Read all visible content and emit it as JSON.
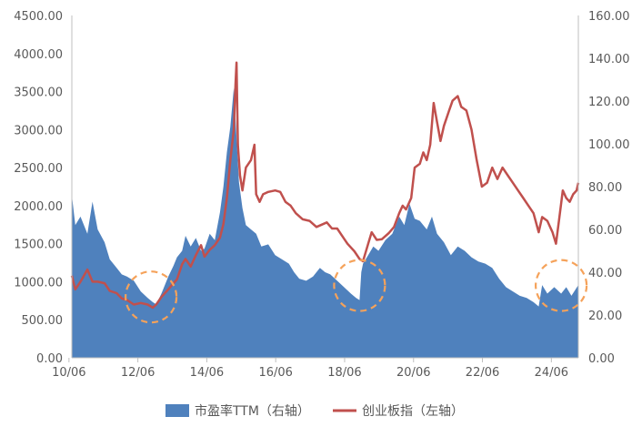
{
  "chart_data": {
    "type": "area+line",
    "title": "",
    "x_ticks": [
      "10/06",
      "12/06",
      "14/06",
      "16/06",
      "18/06",
      "20/06",
      "22/06",
      "24/06"
    ],
    "x_range": [
      2010.5,
      2025.2
    ],
    "left_axis": {
      "ticks": [
        "0.00",
        "500.00",
        "1000.00",
        "1500.00",
        "2000.00",
        "2500.00",
        "3000.00",
        "3500.00",
        "4000.00",
        "4500.00"
      ],
      "ylim": [
        0,
        4500
      ]
    },
    "right_axis": {
      "ticks": [
        "0.00",
        "20.00",
        "40.00",
        "60.00",
        "80.00",
        "100.00",
        "120.00",
        "140.00",
        "160.00"
      ],
      "ylim": [
        0,
        160
      ]
    },
    "grid": false,
    "legend_position": "bottom",
    "series": [
      {
        "name": "市盈率TTM（右轴）",
        "kind": "area",
        "axis": "right",
        "color": "#4f81bd",
        "points": [
          [
            2010.5,
            76
          ],
          [
            2010.6,
            62
          ],
          [
            2010.75,
            66
          ],
          [
            2010.95,
            58
          ],
          [
            2011.1,
            73
          ],
          [
            2011.25,
            60
          ],
          [
            2011.45,
            54
          ],
          [
            2011.6,
            46
          ],
          [
            2011.8,
            42
          ],
          [
            2011.95,
            39
          ],
          [
            2012.1,
            38
          ],
          [
            2012.3,
            36
          ],
          [
            2012.5,
            31
          ],
          [
            2012.7,
            28
          ],
          [
            2012.85,
            26
          ],
          [
            2012.95,
            25
          ],
          [
            2013.1,
            30
          ],
          [
            2013.3,
            38
          ],
          [
            2013.45,
            43
          ],
          [
            2013.55,
            47
          ],
          [
            2013.7,
            50
          ],
          [
            2013.8,
            57
          ],
          [
            2013.95,
            52
          ],
          [
            2014.1,
            56
          ],
          [
            2014.25,
            50
          ],
          [
            2014.35,
            51
          ],
          [
            2014.5,
            58
          ],
          [
            2014.65,
            55
          ],
          [
            2014.8,
            68
          ],
          [
            2014.9,
            80
          ],
          [
            2015.0,
            96
          ],
          [
            2015.1,
            108
          ],
          [
            2015.2,
            126
          ],
          [
            2015.28,
            103
          ],
          [
            2015.35,
            82
          ],
          [
            2015.45,
            70
          ],
          [
            2015.55,
            62
          ],
          [
            2015.7,
            60
          ],
          [
            2015.85,
            58
          ],
          [
            2016.0,
            52
          ],
          [
            2016.2,
            53
          ],
          [
            2016.4,
            48
          ],
          [
            2016.6,
            46
          ],
          [
            2016.8,
            44
          ],
          [
            2016.95,
            40
          ],
          [
            2017.1,
            37
          ],
          [
            2017.3,
            36
          ],
          [
            2017.5,
            38
          ],
          [
            2017.7,
            42
          ],
          [
            2017.85,
            40
          ],
          [
            2018.0,
            39
          ],
          [
            2018.2,
            36
          ],
          [
            2018.4,
            33
          ],
          [
            2018.6,
            30
          ],
          [
            2018.75,
            28
          ],
          [
            2018.85,
            27
          ],
          [
            2018.9,
            40
          ],
          [
            2018.95,
            44
          ],
          [
            2019.1,
            48
          ],
          [
            2019.25,
            52
          ],
          [
            2019.4,
            50
          ],
          [
            2019.6,
            55
          ],
          [
            2019.8,
            58
          ],
          [
            2020.0,
            66
          ],
          [
            2020.15,
            62
          ],
          [
            2020.3,
            72
          ],
          [
            2020.45,
            65
          ],
          [
            2020.6,
            64
          ],
          [
            2020.8,
            60
          ],
          [
            2020.95,
            66
          ],
          [
            2021.1,
            58
          ],
          [
            2021.3,
            54
          ],
          [
            2021.5,
            48
          ],
          [
            2021.7,
            52
          ],
          [
            2021.9,
            50
          ],
          [
            2022.1,
            47
          ],
          [
            2022.3,
            45
          ],
          [
            2022.5,
            44
          ],
          [
            2022.7,
            42
          ],
          [
            2022.9,
            37
          ],
          [
            2023.1,
            33
          ],
          [
            2023.3,
            31
          ],
          [
            2023.5,
            29
          ],
          [
            2023.7,
            28
          ],
          [
            2023.9,
            26
          ],
          [
            2024.05,
            24
          ],
          [
            2024.15,
            34
          ],
          [
            2024.3,
            30
          ],
          [
            2024.5,
            33
          ],
          [
            2024.7,
            30
          ],
          [
            2024.85,
            33
          ],
          [
            2025.0,
            29
          ],
          [
            2025.2,
            34
          ]
        ]
      },
      {
        "name": "创业板指（左轴）",
        "kind": "line",
        "axis": "left",
        "color": "#c0504d",
        "points": [
          [
            2010.5,
            1080
          ],
          [
            2010.6,
            900
          ],
          [
            2010.75,
            1000
          ],
          [
            2010.95,
            1160
          ],
          [
            2011.1,
            1000
          ],
          [
            2011.25,
            1000
          ],
          [
            2011.45,
            980
          ],
          [
            2011.6,
            880
          ],
          [
            2011.8,
            850
          ],
          [
            2011.95,
            780
          ],
          [
            2012.1,
            760
          ],
          [
            2012.3,
            700
          ],
          [
            2012.5,
            720
          ],
          [
            2012.7,
            700
          ],
          [
            2012.85,
            660
          ],
          [
            2012.95,
            700
          ],
          [
            2013.1,
            800
          ],
          [
            2013.3,
            900
          ],
          [
            2013.45,
            980
          ],
          [
            2013.55,
            1030
          ],
          [
            2013.7,
            1230
          ],
          [
            2013.8,
            1300
          ],
          [
            2013.95,
            1200
          ],
          [
            2014.1,
            1350
          ],
          [
            2014.25,
            1480
          ],
          [
            2014.35,
            1330
          ],
          [
            2014.5,
            1420
          ],
          [
            2014.65,
            1480
          ],
          [
            2014.8,
            1580
          ],
          [
            2014.9,
            1760
          ],
          [
            2015.0,
            2100
          ],
          [
            2015.1,
            2600
          ],
          [
            2015.2,
            3000
          ],
          [
            2015.25,
            3600
          ],
          [
            2015.28,
            3880
          ],
          [
            2015.32,
            2800
          ],
          [
            2015.38,
            2400
          ],
          [
            2015.45,
            2200
          ],
          [
            2015.55,
            2500
          ],
          [
            2015.7,
            2600
          ],
          [
            2015.8,
            2800
          ],
          [
            2015.85,
            2150
          ],
          [
            2015.95,
            2050
          ],
          [
            2016.05,
            2150
          ],
          [
            2016.2,
            2180
          ],
          [
            2016.4,
            2200
          ],
          [
            2016.55,
            2180
          ],
          [
            2016.7,
            2050
          ],
          [
            2016.85,
            2000
          ],
          [
            2017.0,
            1900
          ],
          [
            2017.2,
            1820
          ],
          [
            2017.4,
            1800
          ],
          [
            2017.6,
            1720
          ],
          [
            2017.75,
            1750
          ],
          [
            2017.9,
            1780
          ],
          [
            2018.05,
            1700
          ],
          [
            2018.2,
            1700
          ],
          [
            2018.35,
            1600
          ],
          [
            2018.5,
            1500
          ],
          [
            2018.7,
            1400
          ],
          [
            2018.85,
            1300
          ],
          [
            2018.95,
            1270
          ],
          [
            2019.1,
            1500
          ],
          [
            2019.2,
            1650
          ],
          [
            2019.35,
            1550
          ],
          [
            2019.5,
            1560
          ],
          [
            2019.7,
            1640
          ],
          [
            2019.85,
            1720
          ],
          [
            2020.0,
            1900
          ],
          [
            2020.1,
            2000
          ],
          [
            2020.2,
            1950
          ],
          [
            2020.35,
            2100
          ],
          [
            2020.45,
            2500
          ],
          [
            2020.6,
            2550
          ],
          [
            2020.7,
            2700
          ],
          [
            2020.8,
            2600
          ],
          [
            2020.9,
            2800
          ],
          [
            2021.0,
            3350
          ],
          [
            2021.1,
            3100
          ],
          [
            2021.2,
            2850
          ],
          [
            2021.3,
            3050
          ],
          [
            2021.45,
            3250
          ],
          [
            2021.55,
            3380
          ],
          [
            2021.7,
            3440
          ],
          [
            2021.8,
            3300
          ],
          [
            2021.95,
            3250
          ],
          [
            2022.1,
            3000
          ],
          [
            2022.25,
            2600
          ],
          [
            2022.4,
            2250
          ],
          [
            2022.55,
            2300
          ],
          [
            2022.7,
            2500
          ],
          [
            2022.85,
            2350
          ],
          [
            2023.0,
            2500
          ],
          [
            2023.15,
            2400
          ],
          [
            2023.3,
            2300
          ],
          [
            2023.45,
            2200
          ],
          [
            2023.6,
            2100
          ],
          [
            2023.75,
            2000
          ],
          [
            2023.9,
            1900
          ],
          [
            2024.05,
            1650
          ],
          [
            2024.15,
            1850
          ],
          [
            2024.3,
            1800
          ],
          [
            2024.45,
            1650
          ],
          [
            2024.55,
            1500
          ],
          [
            2024.65,
            1850
          ],
          [
            2024.75,
            2200
          ],
          [
            2024.85,
            2100
          ],
          [
            2024.95,
            2050
          ],
          [
            2025.05,
            2150
          ],
          [
            2025.15,
            2200
          ],
          [
            2025.2,
            2300
          ]
        ]
      }
    ],
    "annotations": [
      {
        "kind": "dashed-circle",
        "color": "#f5a25a",
        "x": 2012.8,
        "y_left": 800
      },
      {
        "kind": "dashed-circle",
        "color": "#f5a25a",
        "x": 2018.85,
        "y_left": 950
      },
      {
        "kind": "dashed-circle",
        "color": "#f5a25a",
        "x": 2024.7,
        "y_left": 950
      }
    ]
  }
}
